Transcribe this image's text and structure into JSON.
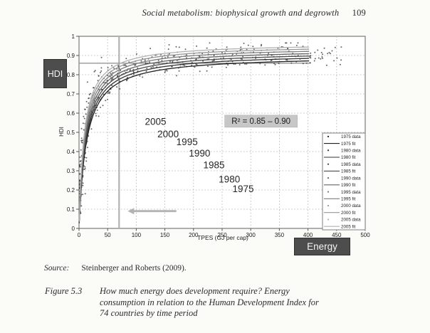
{
  "page": {
    "running_head": {
      "title": "Social metabolism: biophysical growth and degrowth",
      "page_number": "109"
    },
    "source": {
      "label": "Source:",
      "text": "Steinberger and Roberts (2009)."
    },
    "caption": {
      "label": "Figure 5.3",
      "lines": [
        "How much energy does development require? Energy",
        "consumption in relation to the Human Development Index for",
        "74 countries by time period"
      ]
    }
  },
  "chart_data": {
    "type": "scatter",
    "title": "",
    "xlabel": "TPES (GJ per cap)",
    "ylabel": "HDI",
    "xlim": [
      0,
      500
    ],
    "ylim": [
      0,
      1
    ],
    "x_ticks": [
      0,
      50,
      100,
      150,
      200,
      250,
      300,
      350,
      400,
      450,
      500
    ],
    "x_tick_labels": [
      "0",
      "50",
      "100",
      "150",
      "200",
      "250",
      "300",
      "350",
      "400",
      "450",
      "500"
    ],
    "y_ticks": [
      0,
      0.1,
      0.2,
      0.3,
      0.4,
      0.5,
      0.6,
      0.7,
      0.8,
      0.9,
      1
    ],
    "y_tick_labels": [
      "0",
      "0.1",
      "0.2",
      "0.3",
      "0.4",
      "0.5",
      "0.6",
      "0.7",
      "0.8",
      "0.9",
      "1"
    ],
    "grid": "dotted",
    "r2_annotation": {
      "text": "R² = 0.85 – 0.90",
      "x_gj": 318,
      "y_hdi": 0.558
    },
    "year_labels": [
      {
        "text": "2005",
        "x_gj": 115,
        "y_hdi": 0.555
      },
      {
        "text": "2000",
        "x_gj": 137,
        "y_hdi": 0.49
      },
      {
        "text": "1995",
        "x_gj": 170,
        "y_hdi": 0.45
      },
      {
        "text": "1990",
        "x_gj": 192,
        "y_hdi": 0.39
      },
      {
        "text": "1985",
        "x_gj": 217,
        "y_hdi": 0.33
      },
      {
        "text": "1980",
        "x_gj": 244,
        "y_hdi": 0.255
      },
      {
        "text": "1975",
        "x_gj": 268,
        "y_hdi": 0.205
      }
    ],
    "annotations": {
      "hdi_callout": "HDI",
      "energy_callout": "Energy"
    },
    "reference": {
      "vline_x_gj": 70,
      "hline_y_hdi": 0.86,
      "hline_x_end_gj": 405,
      "arrow": {
        "x_from_gj": 170,
        "x_to_gj": 85,
        "y_hdi": 0.09
      }
    },
    "series": [
      {
        "name": "1975",
        "fit_hmax": 0.9,
        "fit_k": 13.0,
        "color": "#1f1f1f"
      },
      {
        "name": "1980",
        "fit_hmax": 0.912,
        "fit_k": 12.3,
        "color": "#333333"
      },
      {
        "name": "1985",
        "fit_hmax": 0.923,
        "fit_k": 11.6,
        "color": "#4a4a4a"
      },
      {
        "name": "1990",
        "fit_hmax": 0.934,
        "fit_k": 10.9,
        "color": "#636363"
      },
      {
        "name": "1995",
        "fit_hmax": 0.945,
        "fit_k": 10.2,
        "color": "#7d7d7d"
      },
      {
        "name": "2000",
        "fit_hmax": 0.955,
        "fit_k": 9.5,
        "color": "#979797"
      },
      {
        "name": "2005",
        "fit_hmax": 0.965,
        "fit_k": 8.9,
        "color": "#b1b1b1"
      }
    ],
    "legend": {
      "position": "inside-right-bottom",
      "entries": [
        {
          "label": "1975 data",
          "marker": "dot",
          "color": "#1f1f1f"
        },
        {
          "label": "1975 fit",
          "marker": "line",
          "color": "#1f1f1f"
        },
        {
          "label": "1980 data",
          "marker": "dot",
          "color": "#333333"
        },
        {
          "label": "1980 fit",
          "marker": "line",
          "color": "#333333"
        },
        {
          "label": "1985 data",
          "marker": "dot",
          "color": "#4a4a4a"
        },
        {
          "label": "1985 fit",
          "marker": "line",
          "color": "#4a4a4a"
        },
        {
          "label": "1990 data",
          "marker": "dot",
          "color": "#636363"
        },
        {
          "label": "1990 fit",
          "marker": "line",
          "color": "#636363"
        },
        {
          "label": "1995 data",
          "marker": "dot",
          "color": "#7d7d7d"
        },
        {
          "label": "1995 fit",
          "marker": "line",
          "color": "#7d7d7d"
        },
        {
          "label": "2000 data",
          "marker": "dot",
          "color": "#979797"
        },
        {
          "label": "2000 fit",
          "marker": "line",
          "color": "#979797"
        },
        {
          "label": "2005 data",
          "marker": "dot",
          "color": "#b1b1b1"
        },
        {
          "label": "2005 fit",
          "marker": "line",
          "color": "#b1b1b1"
        }
      ]
    },
    "scatter_sim": {
      "seed": 20090,
      "points_per_year": 74
    },
    "colors": {
      "grid": "#b0b0b0",
      "reference": "#b3b3b3",
      "hline": "#979797",
      "scatter": "#3a3a3a",
      "r2_bg": "#c7c7c7",
      "callout_bg": "#4d4d4d",
      "axis": "#7a7a7a",
      "tick_text": "#1a1a1a"
    }
  }
}
